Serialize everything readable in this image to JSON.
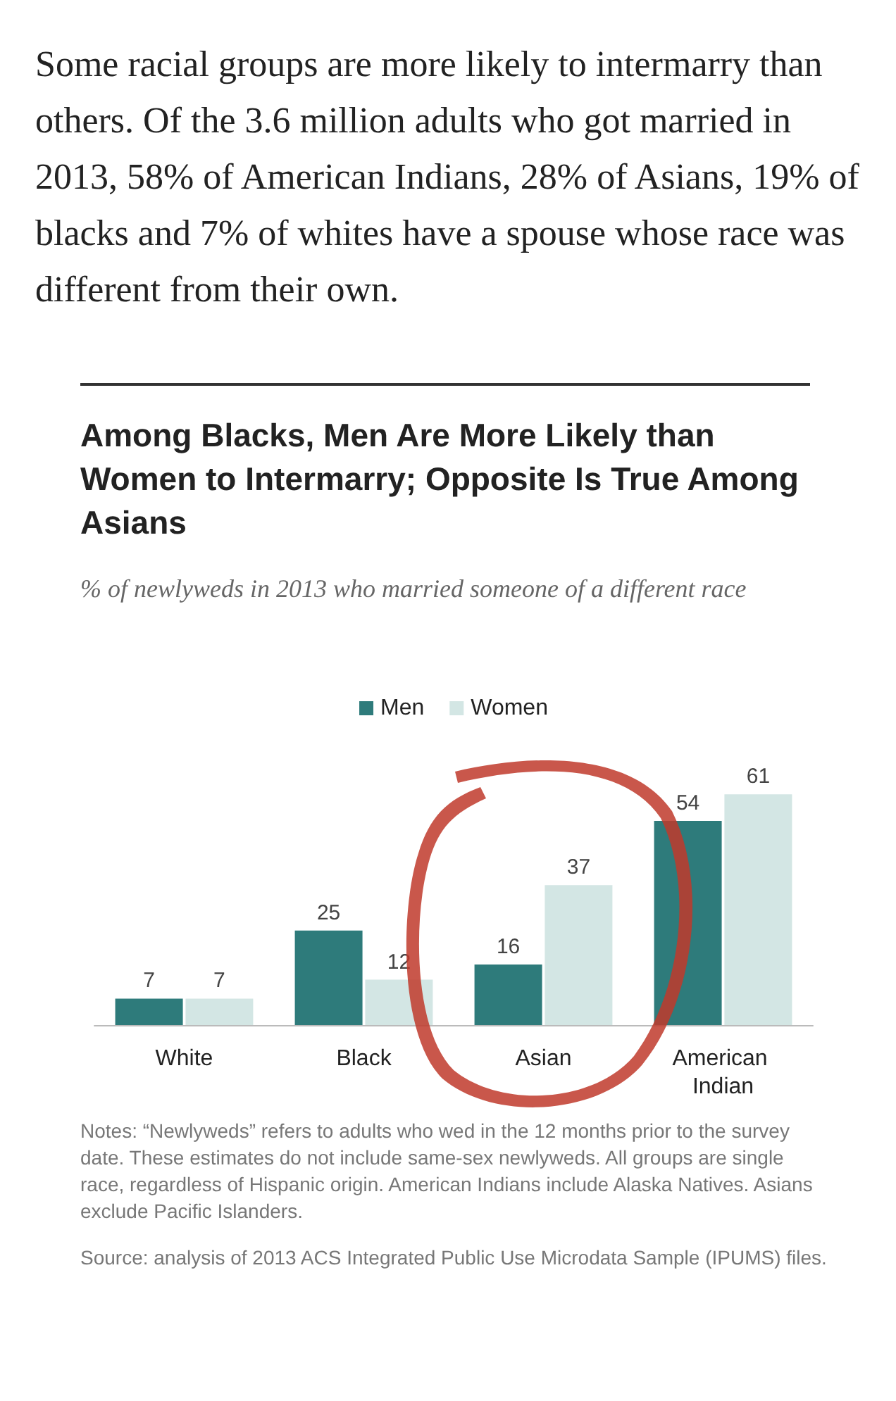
{
  "chart_data": {
    "type": "bar",
    "title": "Among Blacks, Men Are More Likely than Women to Intermarry; Opposite Is True Among Asians",
    "subtitle": "% of newlyweds in 2013 who married someone of a different race",
    "categories": [
      "White",
      "Black",
      "Asian",
      "American Indian"
    ],
    "series": [
      {
        "name": "Men",
        "color": "#2e7b7b",
        "values": [
          7,
          25,
          16,
          54
        ]
      },
      {
        "name": "Women",
        "color": "#d3e6e4",
        "values": [
          7,
          12,
          37,
          61
        ]
      }
    ],
    "data_labels": true,
    "legend": "top",
    "annotations": [
      "Some racial groups are more likely to intermarry than others. Of the 3.6 million adults who got married in 2013, 58% of American Indians, 28% of Asians, 19% of blacks and 7% of whites have a spouse whose race was different from their own.",
      "Notes: “Newlyweds” refers to adults who wed in the 12 months prior to the survey date. These estimates do not include same-sex newlyweds. All groups are single race, regardless of Hispanic origin. American Indians include Alaska Natives. Asians exclude Pacific Islanders.",
      "Source: analysis of 2013 ACS Integrated Public Use Microdata Sample (IPUMS) files."
    ]
  }
}
